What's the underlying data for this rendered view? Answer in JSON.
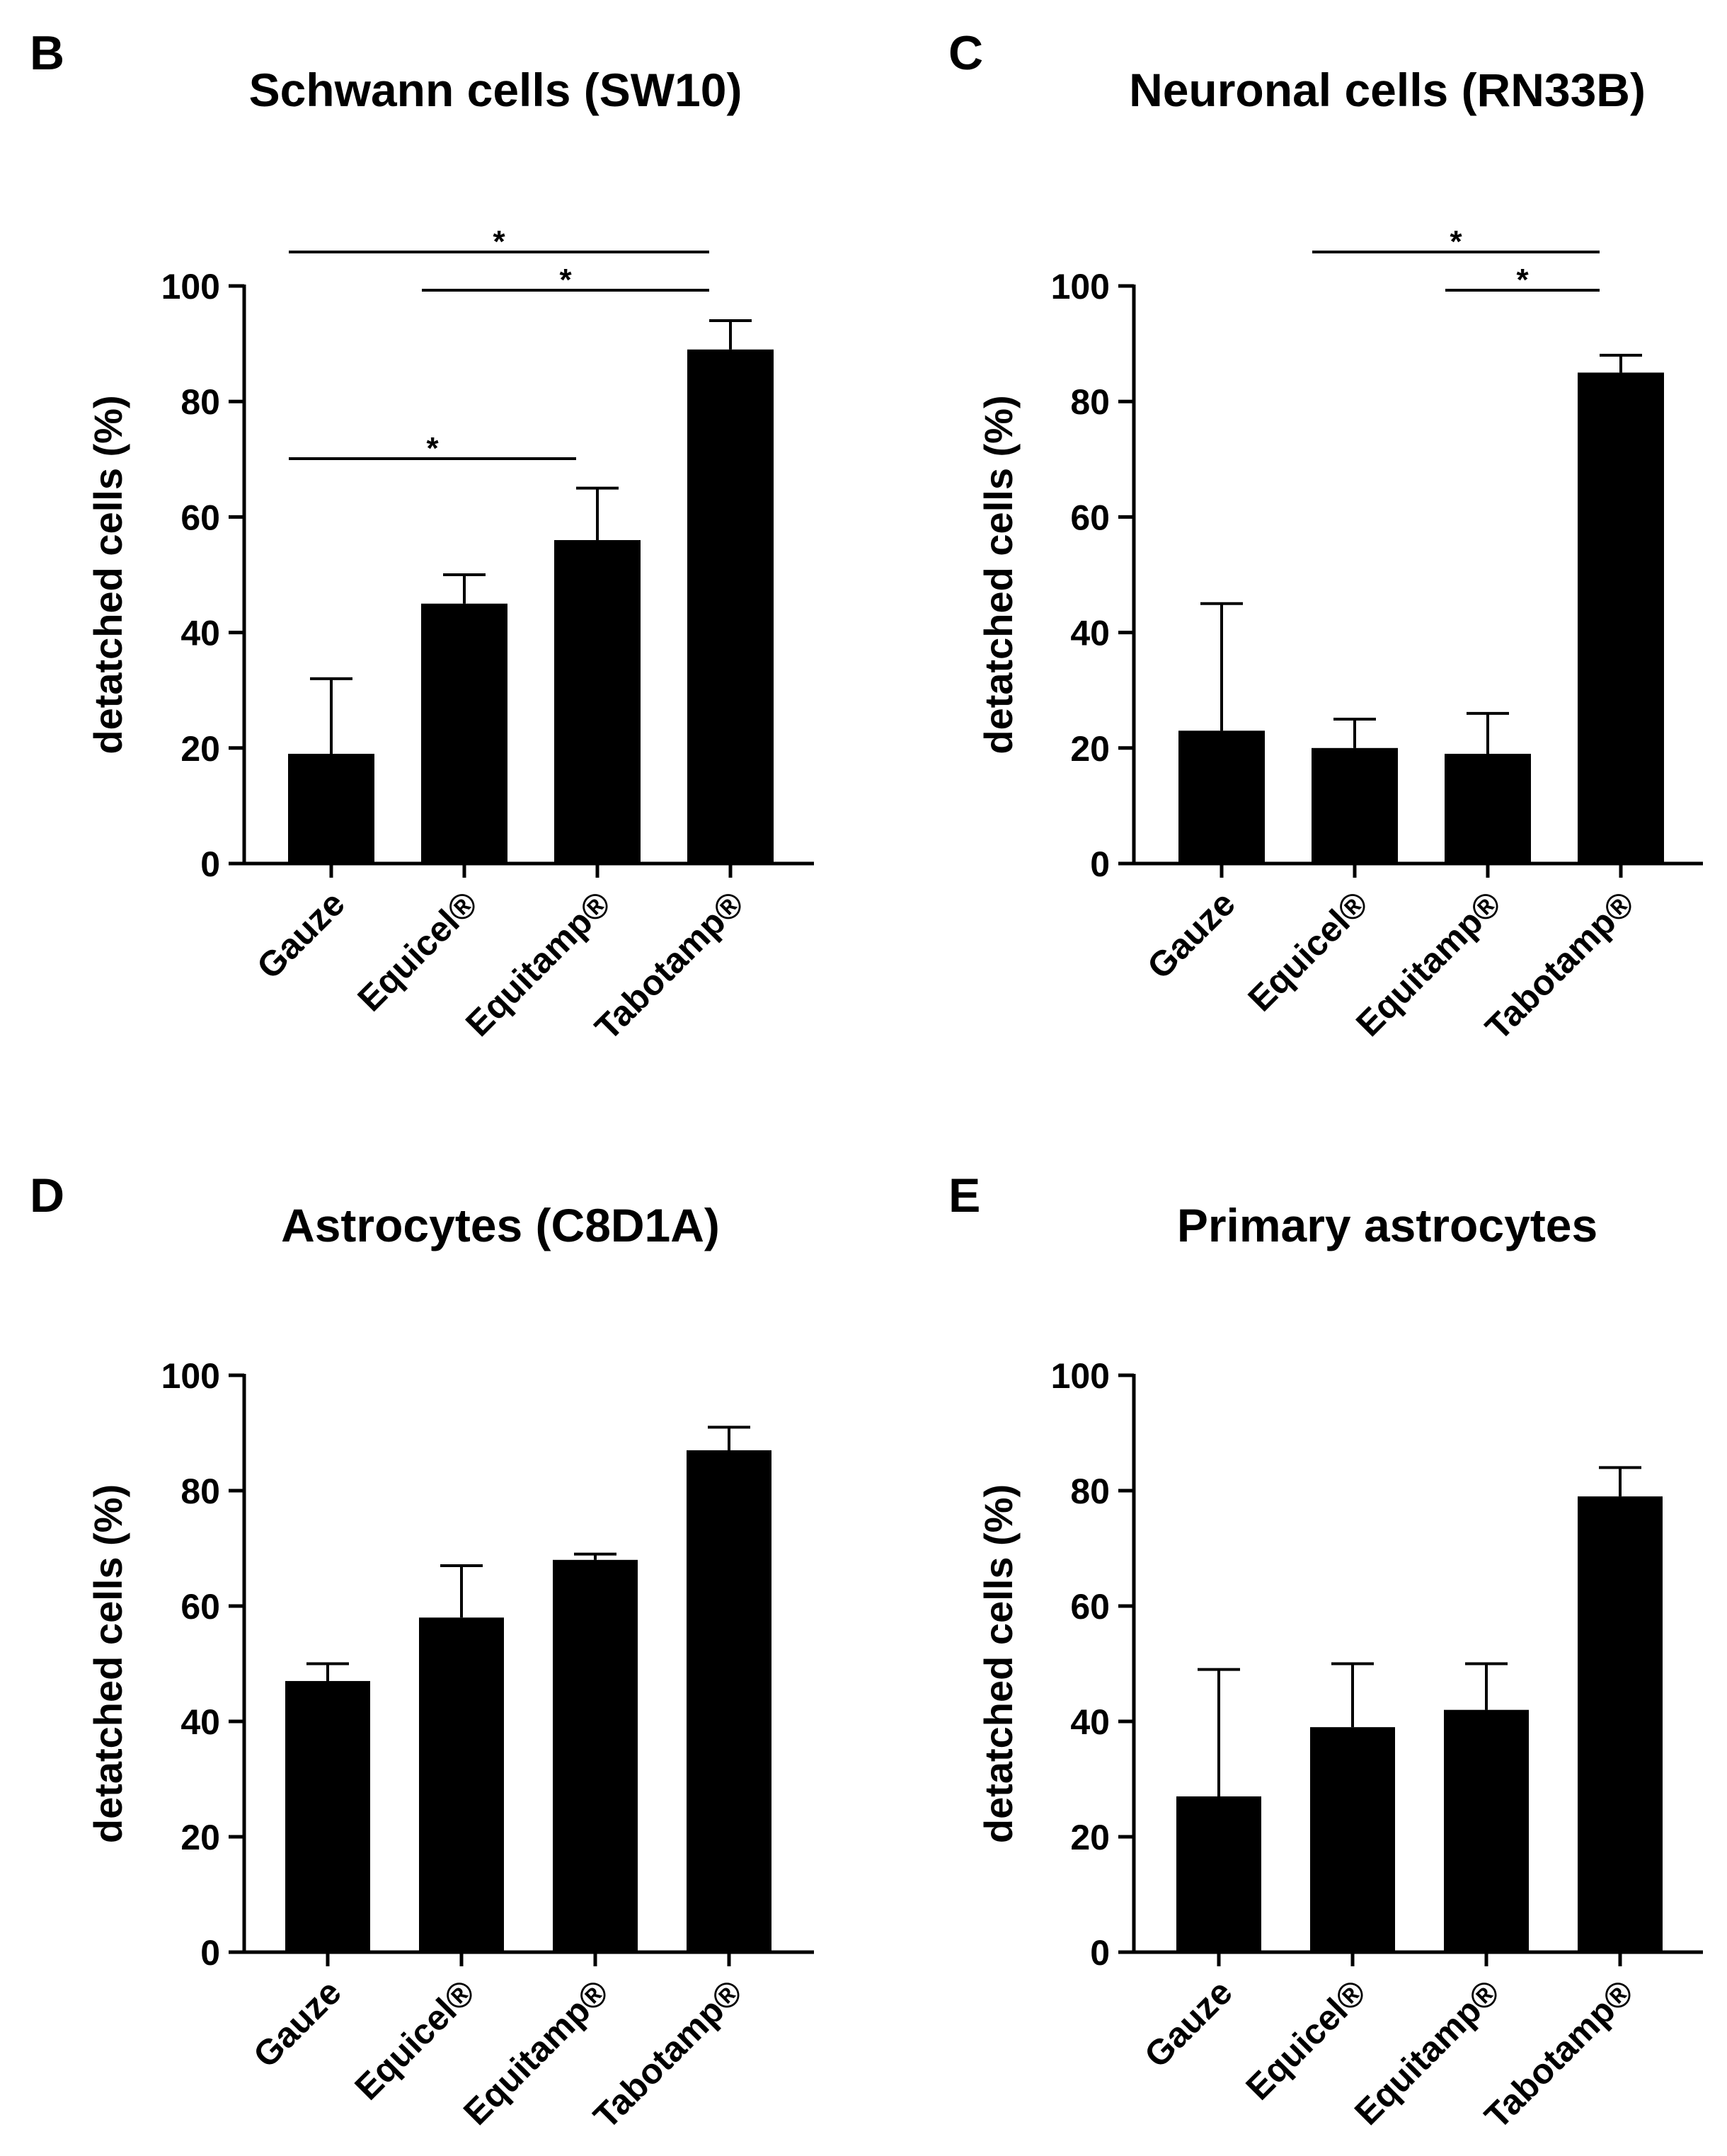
{
  "chart_data": [
    {
      "type": "bar",
      "panel": "B",
      "title": "Schwann cells (SW10)",
      "xlabel": "",
      "ylabel": "detatched cells (%)",
      "ylim": [
        0,
        100
      ],
      "yticks": [
        "0",
        "20",
        "40",
        "60",
        "80",
        "100"
      ],
      "categories": [
        "Gauze",
        "Equicel®",
        "Equitamp®",
        "Tabotamp®"
      ],
      "values": [
        19,
        45,
        56,
        89
      ],
      "errors": [
        13,
        5,
        9,
        5
      ],
      "significance": [
        {
          "from": 0,
          "to": 3,
          "label": "*"
        },
        {
          "from": 1,
          "to": 3,
          "label": "*"
        },
        {
          "from": 0,
          "to": 2,
          "label": "*"
        }
      ]
    },
    {
      "type": "bar",
      "panel": "C",
      "title": "Neuronal cells (RN33B)",
      "xlabel": "",
      "ylabel": "detatched cells (%)",
      "ylim": [
        0,
        100
      ],
      "yticks": [
        "0",
        "20",
        "40",
        "60",
        "80",
        "100"
      ],
      "categories": [
        "Gauze",
        "Equicel®",
        "Equitamp®",
        "Tabotamp®"
      ],
      "values": [
        23,
        20,
        19,
        85
      ],
      "errors": [
        22,
        5,
        7,
        3
      ],
      "significance": [
        {
          "from": 1,
          "to": 3,
          "label": "*"
        },
        {
          "from": 2,
          "to": 3,
          "label": "*"
        }
      ]
    },
    {
      "type": "bar",
      "panel": "D",
      "title": "Astrocytes (C8D1A)",
      "xlabel": "",
      "ylabel": "detatched cells (%)",
      "ylim": [
        0,
        100
      ],
      "yticks": [
        "0",
        "20",
        "40",
        "60",
        "80",
        "100"
      ],
      "categories": [
        "Gauze",
        "Equicel®",
        "Equitamp®",
        "Tabotamp®"
      ],
      "values": [
        47,
        58,
        68,
        87
      ],
      "errors": [
        3,
        9,
        1,
        4
      ],
      "significance": []
    },
    {
      "type": "bar",
      "panel": "E",
      "title": "Primary astrocytes",
      "xlabel": "",
      "ylabel": "detatched cells (%)",
      "ylim": [
        0,
        100
      ],
      "yticks": [
        "0",
        "20",
        "40",
        "60",
        "80",
        "100"
      ],
      "categories": [
        "Gauze",
        "Equicel®",
        "Equitamp®",
        "Tabotamp®"
      ],
      "values": [
        27,
        39,
        42,
        79
      ],
      "errors": [
        22,
        11,
        8,
        5
      ],
      "significance": []
    }
  ]
}
